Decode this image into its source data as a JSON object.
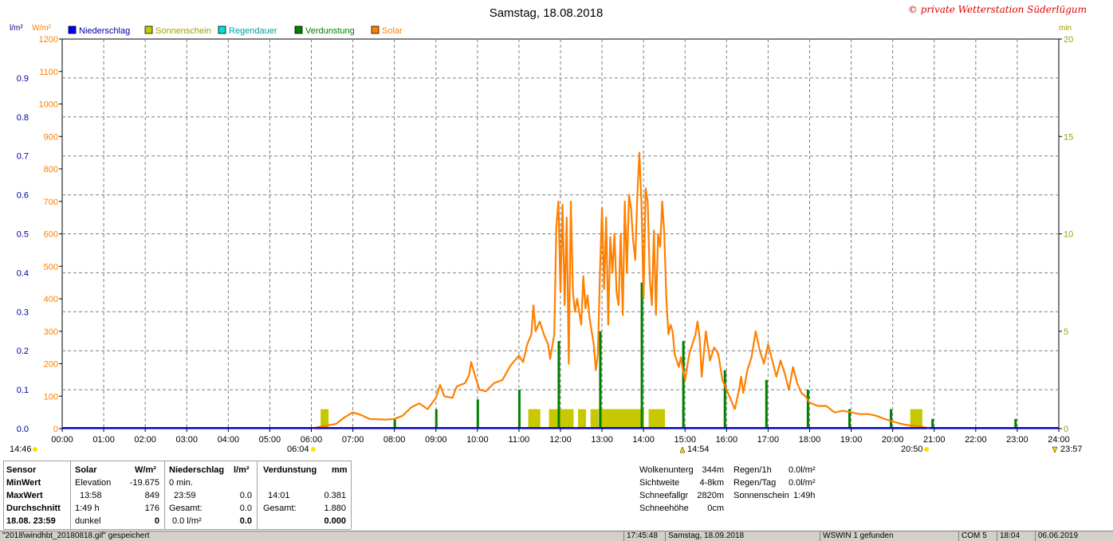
{
  "chart_data": {
    "type": "combo",
    "title": "Samstag, 18.08.2018",
    "copyright": "© private Wetterstation Süderlügum",
    "left_unit_1": "l/m²",
    "left_unit_2": "W/m²",
    "right_unit": "min",
    "legend": [
      {
        "name": "Niederschlag",
        "color": "#0000ff"
      },
      {
        "name": "Sonnenschein",
        "color": "#c8c800"
      },
      {
        "name": "Regendauer",
        "color": "#00e0e0"
      },
      {
        "name": "Verdunstung",
        "color": "#008000"
      },
      {
        "name": "Solar",
        "color": "#ff8000"
      }
    ],
    "y_rain_ticks": [
      "0.0",
      "0.1",
      "0.2",
      "0.3",
      "0.4",
      "0.5",
      "0.6",
      "0.7",
      "0.8",
      "0.9"
    ],
    "y_solar_ticks": [
      "0",
      "100",
      "200",
      "300",
      "400",
      "500",
      "600",
      "700",
      "800",
      "900",
      "1000",
      "1100",
      "1200"
    ],
    "y_solar_range": [
      0,
      1200
    ],
    "y_right_ticks": [
      "0",
      "5",
      "10",
      "15",
      "20"
    ],
    "y_right_range": [
      0,
      20
    ],
    "x_ticks": [
      "00:00",
      "01:00",
      "02:00",
      "03:00",
      "04:00",
      "05:00",
      "06:00",
      "07:00",
      "08:00",
      "09:00",
      "10:00",
      "11:00",
      "12:00",
      "13:00",
      "14:00",
      "15:00",
      "16:00",
      "17:00",
      "18:00",
      "19:00",
      "20:00",
      "21:00",
      "22:00",
      "23:00",
      "24:00"
    ],
    "x_range_hours": [
      0,
      24
    ],
    "markers": {
      "moonrise": "14:46",
      "sunrise": "06:04",
      "solar_noon": "14:54",
      "sunset": "20:50",
      "moonset": "23:57"
    },
    "solar_series": {
      "name": "Solar",
      "unit": "W/m²",
      "points": [
        [
          6.0,
          0
        ],
        [
          6.3,
          8
        ],
        [
          6.6,
          15
        ],
        [
          6.8,
          35
        ],
        [
          7.0,
          50
        ],
        [
          7.2,
          42
        ],
        [
          7.4,
          30
        ],
        [
          7.8,
          28
        ],
        [
          8.0,
          30
        ],
        [
          8.2,
          40
        ],
        [
          8.4,
          65
        ],
        [
          8.6,
          78
        ],
        [
          8.8,
          60
        ],
        [
          9.0,
          95
        ],
        [
          9.1,
          135
        ],
        [
          9.2,
          100
        ],
        [
          9.4,
          95
        ],
        [
          9.5,
          130
        ],
        [
          9.7,
          140
        ],
        [
          9.8,
          165
        ],
        [
          9.85,
          205
        ],
        [
          9.95,
          160
        ],
        [
          10.05,
          120
        ],
        [
          10.2,
          115
        ],
        [
          10.4,
          140
        ],
        [
          10.6,
          150
        ],
        [
          10.8,
          195
        ],
        [
          11.0,
          225
        ],
        [
          11.1,
          205
        ],
        [
          11.2,
          260
        ],
        [
          11.3,
          290
        ],
        [
          11.35,
          380
        ],
        [
          11.4,
          300
        ],
        [
          11.5,
          330
        ],
        [
          11.6,
          290
        ],
        [
          11.7,
          260
        ],
        [
          11.75,
          215
        ],
        [
          11.85,
          290
        ],
        [
          11.9,
          620
        ],
        [
          11.95,
          700
        ],
        [
          12.0,
          420
        ],
        [
          12.05,
          690
        ],
        [
          12.1,
          380
        ],
        [
          12.15,
          650
        ],
        [
          12.2,
          200
        ],
        [
          12.25,
          700
        ],
        [
          12.3,
          420
        ],
        [
          12.35,
          360
        ],
        [
          12.4,
          400
        ],
        [
          12.5,
          320
        ],
        [
          12.55,
          470
        ],
        [
          12.6,
          370
        ],
        [
          12.65,
          410
        ],
        [
          12.7,
          340
        ],
        [
          12.75,
          300
        ],
        [
          12.8,
          260
        ],
        [
          12.85,
          180
        ],
        [
          12.9,
          230
        ],
        [
          12.95,
          480
        ],
        [
          13.0,
          680
        ],
        [
          13.05,
          430
        ],
        [
          13.1,
          650
        ],
        [
          13.15,
          320
        ],
        [
          13.2,
          590
        ],
        [
          13.25,
          480
        ],
        [
          13.3,
          600
        ],
        [
          13.35,
          420
        ],
        [
          13.4,
          380
        ],
        [
          13.45,
          600
        ],
        [
          13.5,
          350
        ],
        [
          13.55,
          700
        ],
        [
          13.6,
          480
        ],
        [
          13.65,
          720
        ],
        [
          13.7,
          680
        ],
        [
          13.75,
          580
        ],
        [
          13.8,
          520
        ],
        [
          13.85,
          720
        ],
        [
          13.9,
          850
        ],
        [
          13.95,
          690
        ],
        [
          14.0,
          400
        ],
        [
          14.05,
          740
        ],
        [
          14.1,
          700
        ],
        [
          14.15,
          460
        ],
        [
          14.2,
          380
        ],
        [
          14.25,
          610
        ],
        [
          14.3,
          350
        ],
        [
          14.35,
          600
        ],
        [
          14.4,
          560
        ],
        [
          14.45,
          700
        ],
        [
          14.5,
          600
        ],
        [
          14.55,
          400
        ],
        [
          14.6,
          290
        ],
        [
          14.65,
          320
        ],
        [
          14.7,
          300
        ],
        [
          14.75,
          230
        ],
        [
          14.8,
          210
        ],
        [
          14.85,
          190
        ],
        [
          14.9,
          220
        ],
        [
          14.95,
          180
        ],
        [
          15.0,
          150
        ],
        [
          15.1,
          230
        ],
        [
          15.2,
          270
        ],
        [
          15.25,
          290
        ],
        [
          15.3,
          330
        ],
        [
          15.35,
          280
        ],
        [
          15.4,
          160
        ],
        [
          15.5,
          300
        ],
        [
          15.6,
          210
        ],
        [
          15.7,
          250
        ],
        [
          15.8,
          230
        ],
        [
          15.9,
          150
        ],
        [
          16.0,
          120
        ],
        [
          16.1,
          90
        ],
        [
          16.2,
          60
        ],
        [
          16.3,
          120
        ],
        [
          16.35,
          160
        ],
        [
          16.4,
          110
        ],
        [
          16.5,
          180
        ],
        [
          16.6,
          220
        ],
        [
          16.7,
          300
        ],
        [
          16.8,
          240
        ],
        [
          16.9,
          200
        ],
        [
          17.0,
          260
        ],
        [
          17.1,
          210
        ],
        [
          17.2,
          160
        ],
        [
          17.3,
          210
        ],
        [
          17.4,
          170
        ],
        [
          17.5,
          120
        ],
        [
          17.6,
          190
        ],
        [
          17.7,
          140
        ],
        [
          17.8,
          110
        ],
        [
          17.9,
          100
        ],
        [
          18.0,
          80
        ],
        [
          18.2,
          70
        ],
        [
          18.4,
          70
        ],
        [
          18.6,
          50
        ],
        [
          18.8,
          55
        ],
        [
          19.0,
          50
        ],
        [
          19.2,
          45
        ],
        [
          19.4,
          45
        ],
        [
          19.6,
          40
        ],
        [
          19.8,
          30
        ],
        [
          20.0,
          22
        ],
        [
          20.2,
          15
        ],
        [
          20.4,
          10
        ],
        [
          20.6,
          8
        ],
        [
          20.8,
          3
        ],
        [
          20.9,
          0
        ]
      ]
    },
    "sunshine_minutes": [
      [
        6.3,
        1
      ],
      [
        11.3,
        1
      ],
      [
        11.4,
        1
      ],
      [
        11.8,
        1
      ],
      [
        11.9,
        1
      ],
      [
        12.0,
        1
      ],
      [
        12.1,
        1
      ],
      [
        12.2,
        1
      ],
      [
        12.5,
        1
      ],
      [
        12.8,
        1
      ],
      [
        13.0,
        1
      ],
      [
        13.1,
        1
      ],
      [
        13.2,
        1
      ],
      [
        13.3,
        1
      ],
      [
        13.4,
        1
      ],
      [
        13.5,
        1
      ],
      [
        13.6,
        1
      ],
      [
        13.7,
        1
      ],
      [
        13.8,
        1
      ],
      [
        13.9,
        1
      ],
      [
        14.2,
        1
      ],
      [
        14.3,
        1
      ],
      [
        14.4,
        1
      ],
      [
        20.5,
        1
      ],
      [
        20.6,
        1
      ]
    ],
    "evaporation_bars": [
      [
        8.0,
        0.5
      ],
      [
        9.0,
        1.0
      ],
      [
        10.0,
        1.5
      ],
      [
        11.0,
        2.0
      ],
      [
        11.95,
        4.5
      ],
      [
        12.95,
        5.0
      ],
      [
        13.95,
        7.5
      ],
      [
        14.95,
        4.5
      ],
      [
        15.95,
        3.0
      ],
      [
        16.95,
        2.5
      ],
      [
        17.95,
        2.0
      ],
      [
        18.95,
        1.0
      ],
      [
        19.95,
        1.0
      ],
      [
        20.95,
        0.5
      ],
      [
        22.95,
        0.5
      ]
    ],
    "evaporation_scale_max": 20
  },
  "stats": {
    "sensor_label": "Sensor",
    "min_label": "MinWert",
    "max_label": "MaxWert",
    "avg_label": "Durchschnitt",
    "date_label": "18.08. 23:59",
    "solar": {
      "header": "Solar",
      "unit": "W/m²",
      "min_text": "Elevation",
      "min_value": "-19.675",
      "max_time": "13:58",
      "max_value": "849",
      "avg_time": "1:49 h",
      "avg_value": "176",
      "last_text": "dunkel",
      "last_value": "0"
    },
    "rain": {
      "header": "Niederschlag",
      "unit": "l/m²",
      "min_text": "0 min.",
      "max_time": "23:59",
      "max_value": "0.0",
      "avg_text": "Gesamt:",
      "avg_value": "0.0",
      "last_text": "0.0 l/m²",
      "last_value": "0.0"
    },
    "evap": {
      "header": "Verdunstung",
      "unit": "mm",
      "max_time": "14:01",
      "max_value": "0.381",
      "avg_text": "Gesamt:",
      "avg_value": "1.880",
      "last_value": "0.000"
    },
    "extra": [
      {
        "label": "Wolkenunterg",
        "value": "344m"
      },
      {
        "label": "Sichtweite",
        "value": "4-8km"
      },
      {
        "label": "Schneefallgr",
        "value": "2820m"
      },
      {
        "label": "Schneehöhe",
        "value": "0cm"
      }
    ],
    "extra2": [
      {
        "label": "Regen/1h",
        "value": "0.0l/m²"
      },
      {
        "label": "Regen/Tag",
        "value": "0.0l/m²"
      },
      {
        "label": "Sonnenschein",
        "value": "1:49h"
      }
    ]
  },
  "statusbar": {
    "msg": "\"2018\\windhbt_20180818.gif\" gespeichert",
    "time": "17:45:48",
    "date": "Samstag, 18.09.2018",
    "wswin": "WSWIN 1 gefunden",
    "com": "COM 5",
    "clock": "18:04",
    "today": "06.06.2019"
  }
}
